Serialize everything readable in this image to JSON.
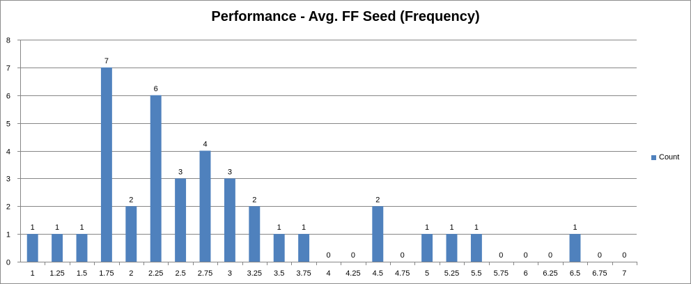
{
  "chart_data": {
    "type": "bar",
    "title": "Performance - Avg. FF Seed (Frequency)",
    "xlabel": "",
    "ylabel": "",
    "categories": [
      "1",
      "1.25",
      "1.5",
      "1.75",
      "2",
      "2.25",
      "2.5",
      "2.75",
      "3",
      "3.25",
      "3.5",
      "3.75",
      "4",
      "4.25",
      "4.5",
      "4.75",
      "5",
      "5.25",
      "5.5",
      "5.75",
      "6",
      "6.25",
      "6.5",
      "6.75",
      "7"
    ],
    "series": [
      {
        "name": "Count",
        "values": [
          1,
          1,
          1,
          7,
          2,
          6,
          3,
          4,
          3,
          2,
          1,
          1,
          0,
          0,
          2,
          0,
          1,
          1,
          1,
          0,
          0,
          0,
          1,
          0,
          0
        ]
      }
    ],
    "ylim": [
      0,
      8
    ],
    "yticks": [
      0,
      1,
      2,
      3,
      4,
      5,
      6,
      7,
      8
    ],
    "grid": true,
    "legend": "right",
    "data_labels": true,
    "colors": {
      "bar": "#4f81bd",
      "grid": "#868686",
      "axis": "#868686"
    }
  }
}
